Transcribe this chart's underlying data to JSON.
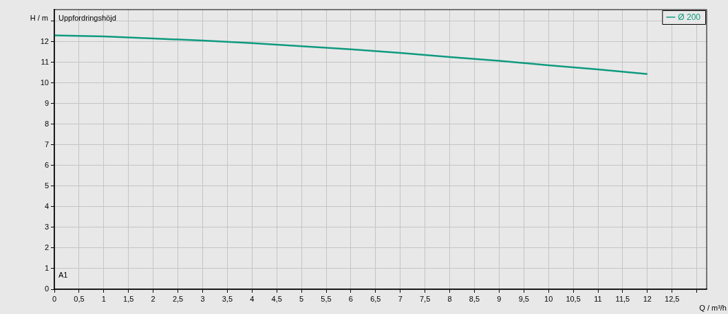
{
  "chart_data": {
    "type": "line",
    "ylabel": "H / m",
    "xlabel": "Q / m³/h",
    "annotations": [
      "Uppfordringshöjd",
      "A1"
    ],
    "x": [
      0,
      1,
      2,
      3,
      4,
      5,
      6,
      7,
      8,
      9,
      10,
      11,
      12
    ],
    "series": [
      {
        "name": "Ø 200",
        "color": "#0e9a7f",
        "values": [
          12.3,
          12.25,
          12.15,
          12.05,
          11.93,
          11.78,
          11.63,
          11.45,
          11.25,
          11.07,
          10.85,
          10.65,
          10.43
        ]
      }
    ],
    "xlim": [
      0,
      13.2
    ],
    "xticks": [
      {
        "value": 0,
        "label": "0"
      },
      {
        "value": 0.5,
        "label": "0,5"
      },
      {
        "value": 1,
        "label": "1"
      },
      {
        "value": 1.5,
        "label": "1,5"
      },
      {
        "value": 2,
        "label": "2"
      },
      {
        "value": 2.5,
        "label": "2,5"
      },
      {
        "value": 3,
        "label": "3"
      },
      {
        "value": 3.5,
        "label": "3,5"
      },
      {
        "value": 4,
        "label": "4"
      },
      {
        "value": 4.5,
        "label": "4,5"
      },
      {
        "value": 5,
        "label": "5"
      },
      {
        "value": 5.5,
        "label": "5,5"
      },
      {
        "value": 6,
        "label": "6"
      },
      {
        "value": 6.5,
        "label": "6,5"
      },
      {
        "value": 7,
        "label": "7"
      },
      {
        "value": 7.5,
        "label": "7,5"
      },
      {
        "value": 8,
        "label": "8"
      },
      {
        "value": 8.5,
        "label": "8,5"
      },
      {
        "value": 9,
        "label": "9"
      },
      {
        "value": 9.5,
        "label": "9,5"
      },
      {
        "value": 10,
        "label": "10"
      },
      {
        "value": 10.5,
        "label": "10,5"
      },
      {
        "value": 11,
        "label": "11"
      },
      {
        "value": 11.5,
        "label": "11,5"
      },
      {
        "value": 12,
        "label": "12"
      },
      {
        "value": 12.5,
        "label": "12,5"
      },
      {
        "value": 13,
        "label": null
      }
    ],
    "ylim": [
      0,
      13.55
    ],
    "yticks": [
      0,
      1,
      2,
      3,
      4,
      5,
      6,
      7,
      8,
      9,
      10,
      11,
      12,
      {
        "value": 13,
        "label": null
      }
    ],
    "grid": true,
    "legend": "top right",
    "marker": "none",
    "line_style": "solid"
  }
}
